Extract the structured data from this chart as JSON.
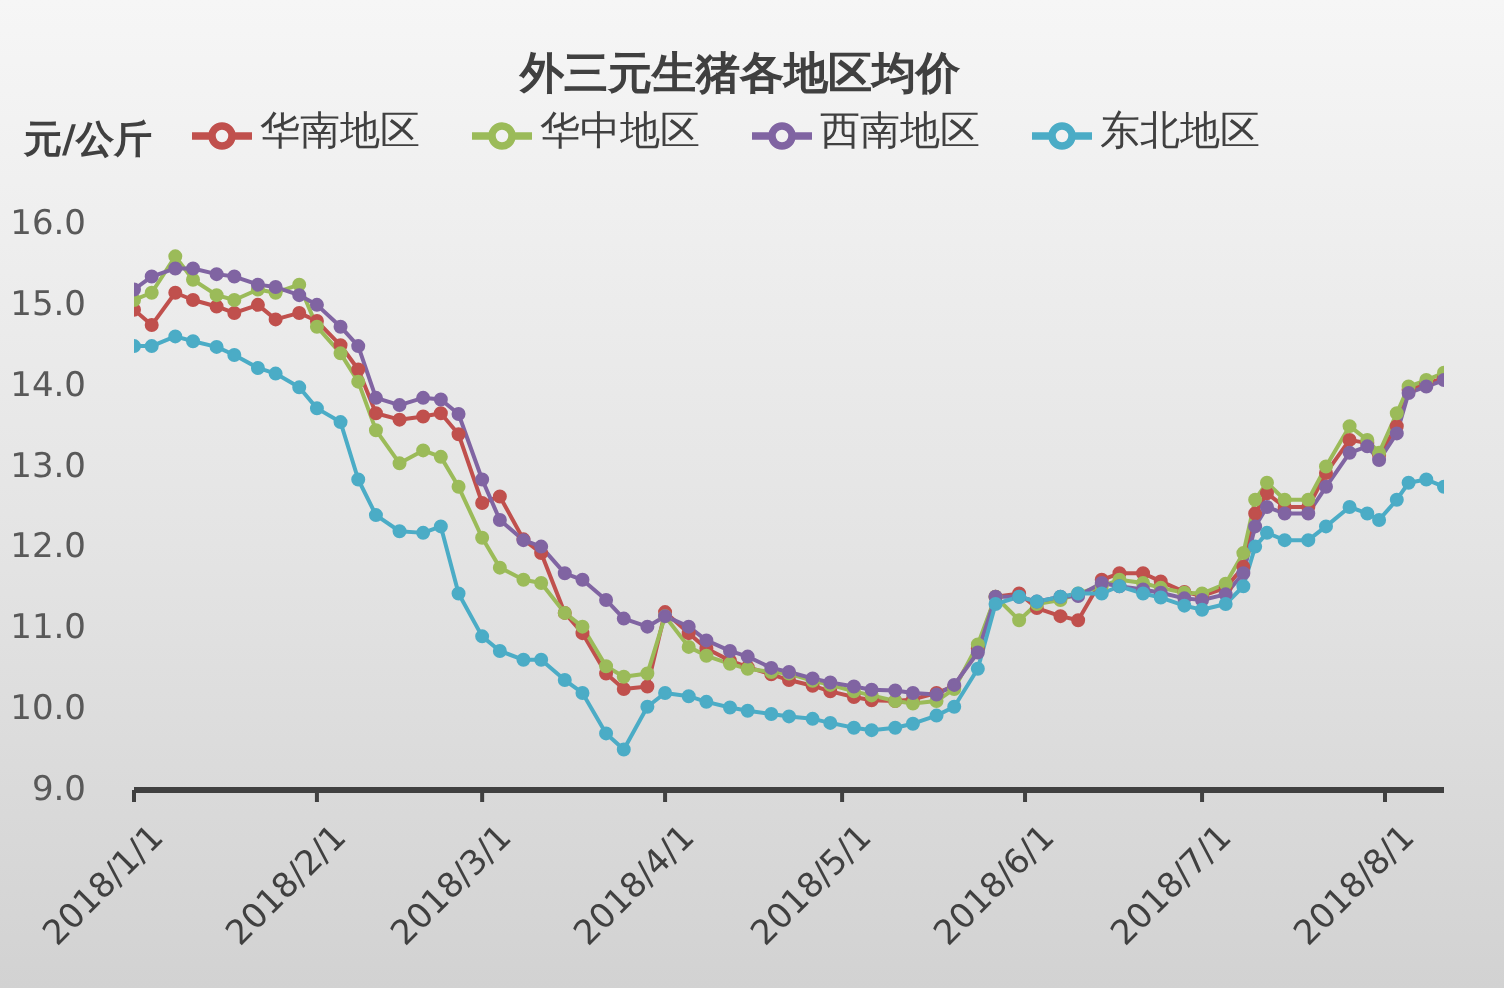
{
  "chart_data": {
    "type": "line",
    "title": "外三元生猪各地区均价",
    "ylabel": "元/公斤",
    "x": [
      "2018-01-01",
      "2018-01-04",
      "2018-01-08",
      "2018-01-11",
      "2018-01-15",
      "2018-01-18",
      "2018-01-22",
      "2018-01-25",
      "2018-01-29",
      "2018-02-01",
      "2018-02-05",
      "2018-02-08",
      "2018-02-11",
      "2018-02-15",
      "2018-02-19",
      "2018-02-22",
      "2018-02-25",
      "2018-03-01",
      "2018-03-04",
      "2018-03-08",
      "2018-03-11",
      "2018-03-15",
      "2018-03-18",
      "2018-03-22",
      "2018-03-25",
      "2018-03-29",
      "2018-04-01",
      "2018-04-05",
      "2018-04-08",
      "2018-04-12",
      "2018-04-15",
      "2018-04-19",
      "2018-04-22",
      "2018-04-26",
      "2018-04-29",
      "2018-05-03",
      "2018-05-06",
      "2018-05-10",
      "2018-05-13",
      "2018-05-17",
      "2018-05-20",
      "2018-05-24",
      "2018-05-27",
      "2018-05-31",
      "2018-06-03",
      "2018-06-07",
      "2018-06-10",
      "2018-06-14",
      "2018-06-17",
      "2018-06-21",
      "2018-06-24",
      "2018-06-28",
      "2018-07-01",
      "2018-07-05",
      "2018-07-08",
      "2018-07-10",
      "2018-07-12",
      "2018-07-15",
      "2018-07-19",
      "2018-07-22",
      "2018-07-26",
      "2018-07-29",
      "2018-07-31",
      "2018-08-03",
      "2018-08-05",
      "2018-08-08",
      "2018-08-11"
    ],
    "series": [
      {
        "name": "华南地区",
        "color": "#c0504d",
        "values": [
          14.94,
          14.75,
          15.15,
          15.06,
          14.98,
          14.9,
          15.0,
          14.82,
          14.9,
          14.8,
          14.5,
          14.2,
          13.66,
          13.58,
          13.62,
          13.66,
          13.4,
          12.55,
          12.63,
          12.1,
          11.93,
          11.19,
          10.94,
          10.44,
          10.25,
          10.28,
          11.2,
          10.94,
          10.75,
          10.6,
          10.52,
          10.43,
          10.36,
          10.29,
          10.22,
          10.15,
          10.11,
          10.1,
          10.12,
          10.2,
          10.28,
          10.75,
          11.39,
          11.43,
          11.25,
          11.15,
          11.1,
          11.6,
          11.68,
          11.68,
          11.58,
          11.45,
          11.4,
          11.5,
          11.76,
          12.42,
          12.67,
          12.5,
          12.5,
          12.92,
          13.33,
          13.29,
          13.14,
          13.5,
          13.95,
          14.02,
          14.1
        ]
      },
      {
        "name": "华中地区",
        "color": "#9bbb59",
        "values": [
          15.06,
          15.15,
          15.6,
          15.31,
          15.12,
          15.06,
          15.19,
          15.15,
          15.25,
          14.73,
          14.4,
          14.05,
          13.45,
          13.04,
          13.2,
          13.12,
          12.75,
          12.12,
          11.75,
          11.6,
          11.56,
          11.19,
          11.02,
          10.53,
          10.4,
          10.44,
          11.15,
          10.77,
          10.66,
          10.56,
          10.5,
          10.46,
          10.44,
          10.35,
          10.3,
          10.22,
          10.17,
          10.1,
          10.07,
          10.1,
          10.25,
          10.8,
          11.39,
          11.1,
          11.3,
          11.35,
          11.43,
          11.52,
          11.6,
          11.56,
          11.5,
          11.44,
          11.43,
          11.55,
          11.93,
          12.59,
          12.8,
          12.59,
          12.59,
          13.0,
          13.5,
          13.33,
          13.17,
          13.66,
          13.99,
          14.07,
          14.16
        ]
      },
      {
        "name": "西南地区",
        "color": "#8064a2",
        "values": [
          15.19,
          15.35,
          15.45,
          15.45,
          15.38,
          15.35,
          15.25,
          15.22,
          15.12,
          15.0,
          14.73,
          14.49,
          13.85,
          13.76,
          13.85,
          13.83,
          13.65,
          12.84,
          12.34,
          12.09,
          12.01,
          11.68,
          11.6,
          11.35,
          11.12,
          11.02,
          11.15,
          11.02,
          10.85,
          10.72,
          10.65,
          10.51,
          10.46,
          10.38,
          10.33,
          10.28,
          10.24,
          10.23,
          10.2,
          10.18,
          10.3,
          10.7,
          11.39,
          11.39,
          11.33,
          11.39,
          11.4,
          11.56,
          11.52,
          11.48,
          11.44,
          11.37,
          11.35,
          11.42,
          11.68,
          12.26,
          12.5,
          12.42,
          12.42,
          12.75,
          13.17,
          13.25,
          13.08,
          13.41,
          13.91,
          13.99,
          14.07
        ]
      },
      {
        "name": "东北地区",
        "color": "#4bacc6",
        "values": [
          14.49,
          14.49,
          14.61,
          14.55,
          14.48,
          14.38,
          14.22,
          14.15,
          13.98,
          13.72,
          13.55,
          12.84,
          12.4,
          12.2,
          12.18,
          12.26,
          11.43,
          10.9,
          10.72,
          10.61,
          10.61,
          10.36,
          10.2,
          9.7,
          9.5,
          10.03,
          10.2,
          10.16,
          10.09,
          10.02,
          9.98,
          9.94,
          9.91,
          9.88,
          9.83,
          9.77,
          9.74,
          9.77,
          9.82,
          9.92,
          10.03,
          10.5,
          11.3,
          11.39,
          11.33,
          11.39,
          11.43,
          11.43,
          11.52,
          11.43,
          11.38,
          11.28,
          11.23,
          11.3,
          11.52,
          12.01,
          12.18,
          12.09,
          12.09,
          12.26,
          12.5,
          12.42,
          12.34,
          12.59,
          12.8,
          12.84,
          12.75
        ]
      }
    ],
    "xlim": [
      "2018-01-01",
      "2018-08-11"
    ],
    "xticks": [
      {
        "value": "2018-01-01",
        "label": "2018/1/1"
      },
      {
        "value": "2018-02-01",
        "label": "2018/2/1"
      },
      {
        "value": "2018-03-01",
        "label": "2018/3/1"
      },
      {
        "value": "2018-04-01",
        "label": "2018/4/1"
      },
      {
        "value": "2018-05-01",
        "label": "2018/5/1"
      },
      {
        "value": "2018-06-01",
        "label": "2018/6/1"
      },
      {
        "value": "2018-07-01",
        "label": "2018/7/1"
      },
      {
        "value": "2018-08-01",
        "label": "2018/8/1"
      }
    ],
    "ylim": [
      9,
      16
    ],
    "yticks": [
      {
        "value": 9,
        "label": "9.0"
      },
      {
        "value": 10,
        "label": "10.0"
      },
      {
        "value": 11,
        "label": "11.0"
      },
      {
        "value": 12,
        "label": "12.0"
      },
      {
        "value": 13,
        "label": "13.0"
      },
      {
        "value": 14,
        "label": "14.0"
      },
      {
        "value": 15,
        "label": "15.0"
      },
      {
        "value": 16,
        "label": "16.0"
      }
    ],
    "legend": "top",
    "marker": "circle"
  }
}
